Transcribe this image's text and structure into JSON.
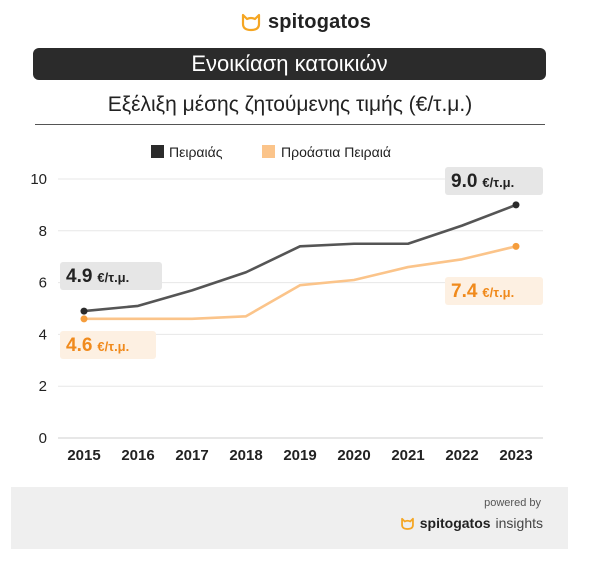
{
  "brand": {
    "name": "spitogatos",
    "accent": "#f5a623",
    "icon": "cat-head-icon"
  },
  "header": {
    "title": "Ενοικίαση κατοικιών"
  },
  "chart_data": {
    "type": "line",
    "title": "Εξέλιξη μέσης ζητούμενης τιμής (€/τ.μ.)",
    "categories": [
      "2015",
      "2016",
      "2017",
      "2018",
      "2019",
      "2020",
      "2021",
      "2022",
      "2023"
    ],
    "ylim": [
      0,
      10
    ],
    "yticks": [
      0,
      2,
      4,
      6,
      8,
      10
    ],
    "grid": true,
    "legend_position": "top",
    "series": [
      {
        "name": "Πειραιάς",
        "color": "#555555",
        "marker_color": "#2b2b2b",
        "values": [
          4.9,
          5.1,
          5.7,
          6.4,
          7.4,
          7.5,
          7.5,
          8.2,
          9.0
        ]
      },
      {
        "name": "Προάστια Πειραιά",
        "color": "#fbc48a",
        "marker_color": "#f59d3c",
        "values": [
          4.6,
          4.6,
          4.6,
          4.7,
          5.9,
          6.1,
          6.6,
          6.9,
          7.4
        ]
      }
    ],
    "annotations": [
      {
        "series": 0,
        "point": 0,
        "value": "4.9",
        "unit": "€/τ.μ.",
        "text_color": "#222222",
        "bg": "#e6e6e6"
      },
      {
        "series": 0,
        "point": 8,
        "value": "9.0",
        "unit": "€/τ.μ.",
        "text_color": "#222222",
        "bg": "#e6e6e6"
      },
      {
        "series": 1,
        "point": 0,
        "value": "4.6",
        "unit": "€/τ.μ.",
        "text_color": "#f08a1c",
        "bg": "#fdf0e2"
      },
      {
        "series": 1,
        "point": 8,
        "value": "7.4",
        "unit": "€/τ.μ.",
        "text_color": "#f08a1c",
        "bg": "#fdf0e2"
      }
    ]
  },
  "footer": {
    "powered_by": "powered by",
    "brand": "spitogatos",
    "product": "insights"
  }
}
